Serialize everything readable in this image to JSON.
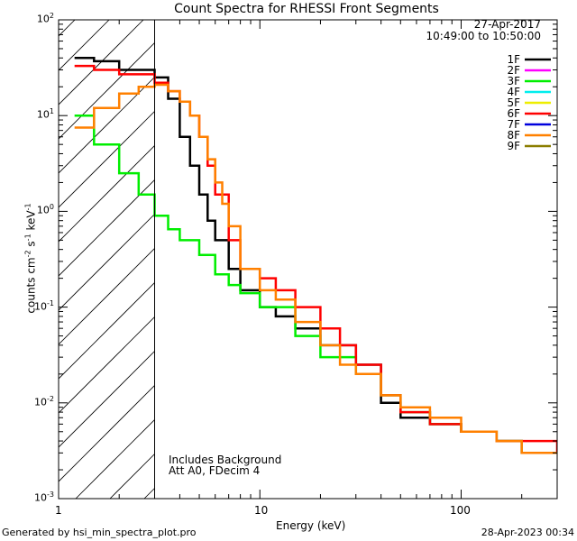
{
  "chart_data": {
    "type": "line",
    "title": "Count Spectra for RHESSI Front Segments",
    "xlabel": "Energy (keV)",
    "ylabel": "counts cm^-2 s^-1 keV^-1",
    "xscale": "log",
    "yscale": "log",
    "xlim": [
      1,
      300
    ],
    "ylim": [
      0.001,
      100
    ],
    "x_tick_labels": [
      "1",
      "10",
      "100"
    ],
    "y_tick_labels": [
      "10^-3",
      "10^-2",
      "10^-1",
      "10^0",
      "10^1",
      "10^2"
    ],
    "annotation": {
      "date": "27-Apr-2017",
      "time_range": "10:49:00 to 10:50:00",
      "notes": [
        "Includes Background",
        "Att A0, FDecim 4"
      ],
      "shaded_region_keV": [
        1,
        3
      ]
    },
    "legend": [
      {
        "name": "1F",
        "color": "#000000"
      },
      {
        "name": "2F",
        "color": "#ff00ff"
      },
      {
        "name": "3F",
        "color": "#00ee00"
      },
      {
        "name": "4F",
        "color": "#00eeee"
      },
      {
        "name": "5F",
        "color": "#eeee00"
      },
      {
        "name": "6F",
        "color": "#ff0000"
      },
      {
        "name": "7F",
        "color": "#0000dd"
      },
      {
        "name": "8F",
        "color": "#ff8000"
      },
      {
        "name": "9F",
        "color": "#8b7d00"
      }
    ],
    "series": [
      {
        "name": "1F",
        "color": "#000000",
        "x": [
          1.2,
          1.5,
          2.0,
          3.0,
          3.5,
          4.0,
          4.5,
          5.0,
          5.5,
          6.0,
          7.0,
          8.0,
          10.0,
          12.0,
          15.0,
          20.0,
          30.0,
          40.0,
          50.0,
          70.0,
          100.0,
          150.0,
          200.0,
          300.0
        ],
        "y": [
          40,
          37,
          30,
          25,
          15,
          6.0,
          3.0,
          1.5,
          0.8,
          0.5,
          0.25,
          0.15,
          0.1,
          0.08,
          0.06,
          0.04,
          0.025,
          0.01,
          0.007,
          0.006,
          0.005,
          0.004,
          0.003,
          0.003
        ]
      },
      {
        "name": "3F",
        "color": "#00ee00",
        "x": [
          1.2,
          1.5,
          2.0,
          2.5,
          3.0,
          3.5,
          4.0,
          5.0,
          6.0,
          7.0,
          8.0,
          10.0,
          15.0,
          20.0,
          30.0,
          40.0,
          50.0,
          70.0,
          100.0,
          150.0,
          200.0,
          300.0
        ],
        "y": [
          10,
          5.0,
          2.5,
          1.5,
          0.9,
          0.65,
          0.5,
          0.35,
          0.22,
          0.17,
          0.14,
          0.1,
          0.05,
          0.03,
          0.02,
          0.012,
          0.008,
          0.006,
          0.005,
          0.004,
          0.003,
          0.003
        ]
      },
      {
        "name": "6F",
        "color": "#ff0000",
        "x": [
          1.2,
          1.5,
          2.0,
          3.0,
          3.5,
          4.0,
          4.5,
          5.0,
          5.5,
          6.0,
          7.0,
          8.0,
          10.0,
          12.0,
          15.0,
          20.0,
          25.0,
          30.0,
          40.0,
          50.0,
          70.0,
          100.0,
          150.0,
          200.0,
          300.0
        ],
        "y": [
          33,
          30,
          27,
          22,
          18,
          14,
          10,
          6.0,
          3.0,
          1.5,
          0.5,
          0.25,
          0.2,
          0.15,
          0.1,
          0.06,
          0.04,
          0.025,
          0.012,
          0.008,
          0.006,
          0.005,
          0.004,
          0.004,
          0.003
        ]
      },
      {
        "name": "8F",
        "color": "#ff8000",
        "x": [
          1.2,
          1.5,
          2.0,
          2.5,
          3.0,
          3.5,
          4.0,
          4.5,
          5.0,
          5.5,
          6.0,
          6.5,
          7.0,
          8.0,
          10.0,
          12.0,
          15.0,
          20.0,
          25.0,
          30.0,
          40.0,
          50.0,
          70.0,
          100.0,
          150.0,
          200.0,
          300.0
        ],
        "y": [
          7.5,
          12,
          17,
          20,
          21,
          18,
          14,
          10,
          6.0,
          3.5,
          2.0,
          1.2,
          0.7,
          0.25,
          0.15,
          0.12,
          0.07,
          0.04,
          0.025,
          0.02,
          0.012,
          0.009,
          0.007,
          0.005,
          0.004,
          0.003,
          0.003
        ]
      }
    ]
  },
  "footer": {
    "left": "Generated by hsi_min_spectra_plot.pro",
    "right": "28-Apr-2023 00:34"
  }
}
